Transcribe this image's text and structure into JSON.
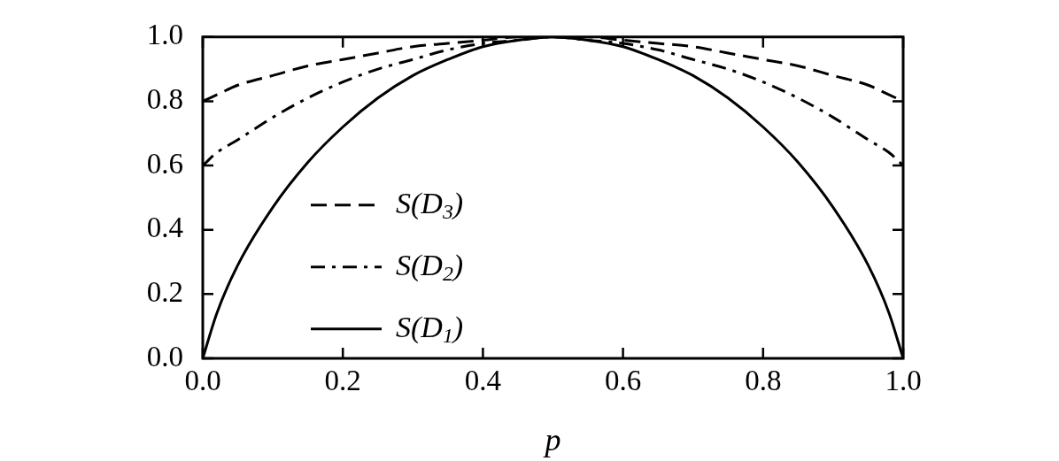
{
  "chart_data": {
    "type": "line",
    "xlabel": "p",
    "x": [
      0,
      0.02,
      0.05,
      0.1,
      0.15,
      0.2,
      0.25,
      0.3,
      0.35,
      0.4,
      0.45,
      0.5,
      0.55,
      0.6,
      0.65,
      0.7,
      0.75,
      0.8,
      0.85,
      0.9,
      0.95,
      0.98,
      1
    ],
    "xlim": [
      0,
      1
    ],
    "ylim": [
      0,
      1
    ],
    "xticks": [
      {
        "value": 0,
        "label": "0.0"
      },
      0.2,
      0.4,
      0.6,
      0.8,
      {
        "value": 1,
        "label": "1.0"
      }
    ],
    "yticks": [
      {
        "value": 0,
        "label": "0.0"
      },
      0.2,
      0.4,
      0.6,
      0.8,
      {
        "value": 1,
        "label": "1.0"
      }
    ],
    "legend": "left",
    "marker": "none",
    "series": [
      {
        "name": "S(D$_{3}$)",
        "color": "#000000",
        "line_style": "dashed",
        "values": [
          0.8,
          0.82,
          0.85,
          0.88,
          0.91,
          0.93,
          0.95,
          0.97,
          0.98,
          0.99,
          1.0,
          1.0,
          1.0,
          0.99,
          0.98,
          0.97,
          0.95,
          0.93,
          0.91,
          0.88,
          0.85,
          0.82,
          0.8
        ]
      },
      {
        "name": "S(D$_{2}$)",
        "color": "#000000",
        "line_style": "dashdot",
        "values": [
          0.6,
          0.64,
          0.68,
          0.75,
          0.81,
          0.86,
          0.9,
          0.93,
          0.96,
          0.98,
          0.99,
          1.0,
          0.99,
          0.98,
          0.96,
          0.93,
          0.9,
          0.86,
          0.81,
          0.75,
          0.68,
          0.64,
          0.6
        ]
      },
      {
        "name": "S(D$_{1}$)",
        "color": "#000000",
        "line_style": "solid",
        "values": [
          0,
          0.14,
          0.29,
          0.47,
          0.61,
          0.72,
          0.81,
          0.88,
          0.93,
          0.97,
          0.99,
          1.0,
          0.99,
          0.97,
          0.93,
          0.88,
          0.81,
          0.72,
          0.61,
          0.47,
          0.29,
          0.14,
          0
        ]
      }
    ]
  }
}
